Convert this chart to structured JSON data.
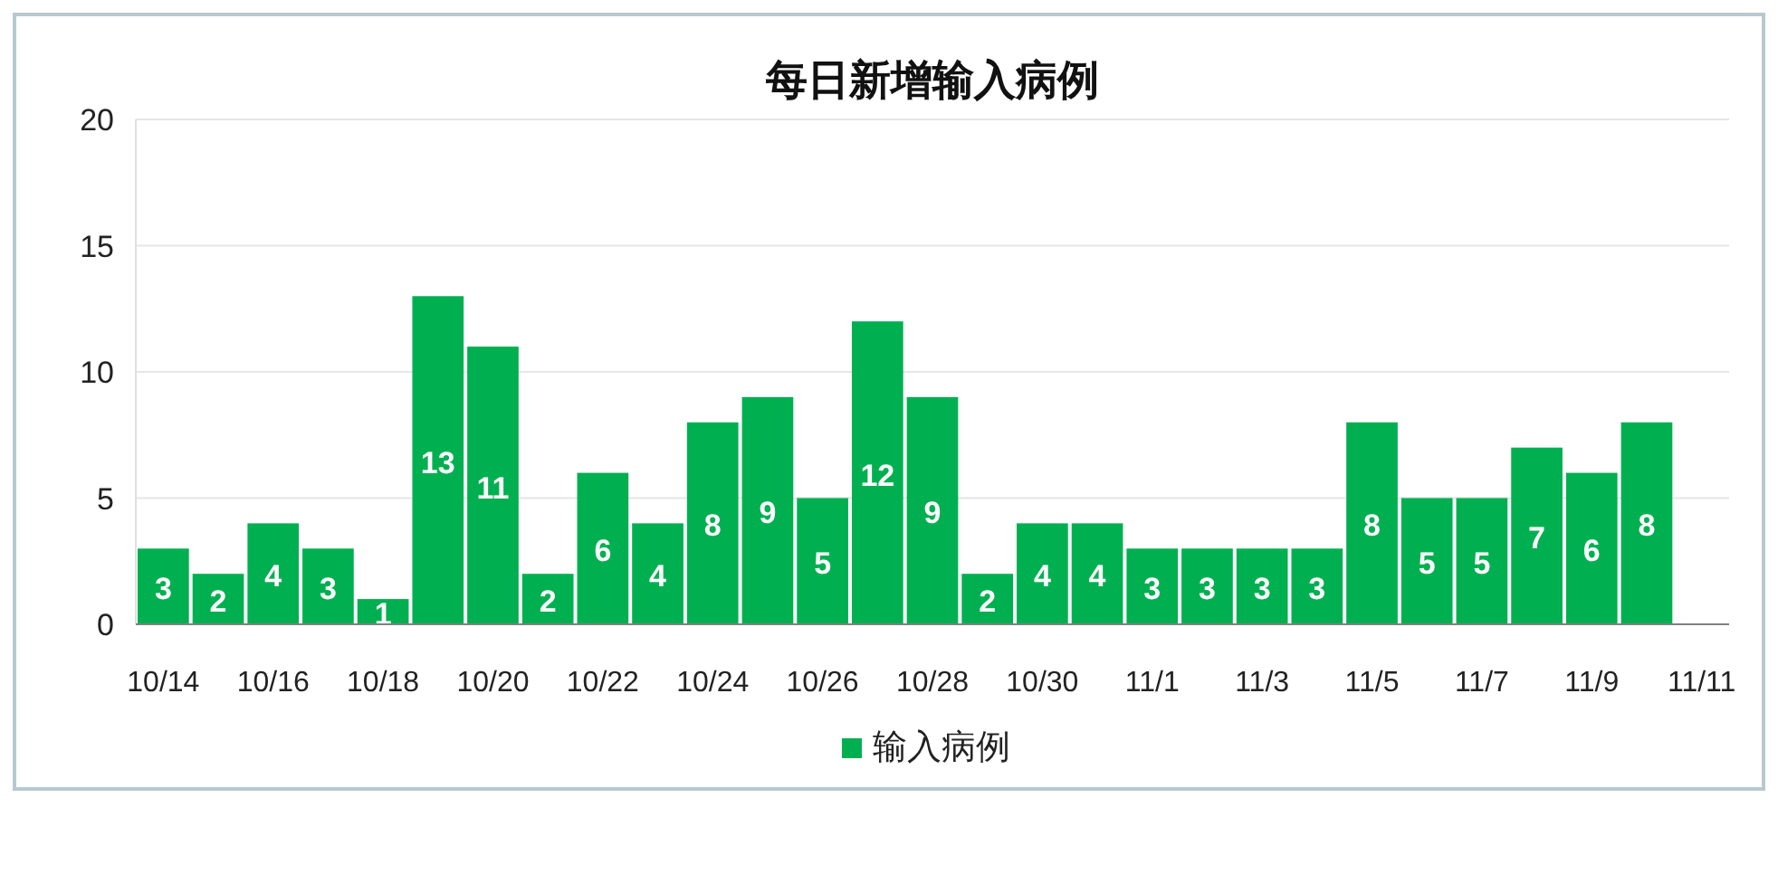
{
  "chart_data": {
    "type": "bar",
    "title": "每日新增输入病例",
    "categories": [
      "10/14",
      null,
      "10/16",
      null,
      "10/18",
      null,
      "10/20",
      null,
      "10/22",
      null,
      "10/24",
      null,
      "10/26",
      null,
      "10/28",
      null,
      "10/30",
      null,
      "11/1",
      null,
      "11/3",
      null,
      "11/5",
      null,
      "11/7",
      null,
      "11/9",
      null,
      "11/11"
    ],
    "series": [
      {
        "name": "输入病例",
        "color": "#00b050",
        "values": [
          3,
          2,
          4,
          3,
          1,
          13,
          11,
          2,
          6,
          4,
          8,
          9,
          5,
          12,
          9,
          2,
          4,
          4,
          3,
          3,
          3,
          3,
          8,
          5,
          5,
          7,
          6,
          8,
          null
        ]
      }
    ],
    "ylim": [
      0,
      20
    ],
    "yticks": [
      0,
      5,
      10,
      15,
      20
    ],
    "grid": "y",
    "legend": "bottom",
    "data_labels": true
  }
}
